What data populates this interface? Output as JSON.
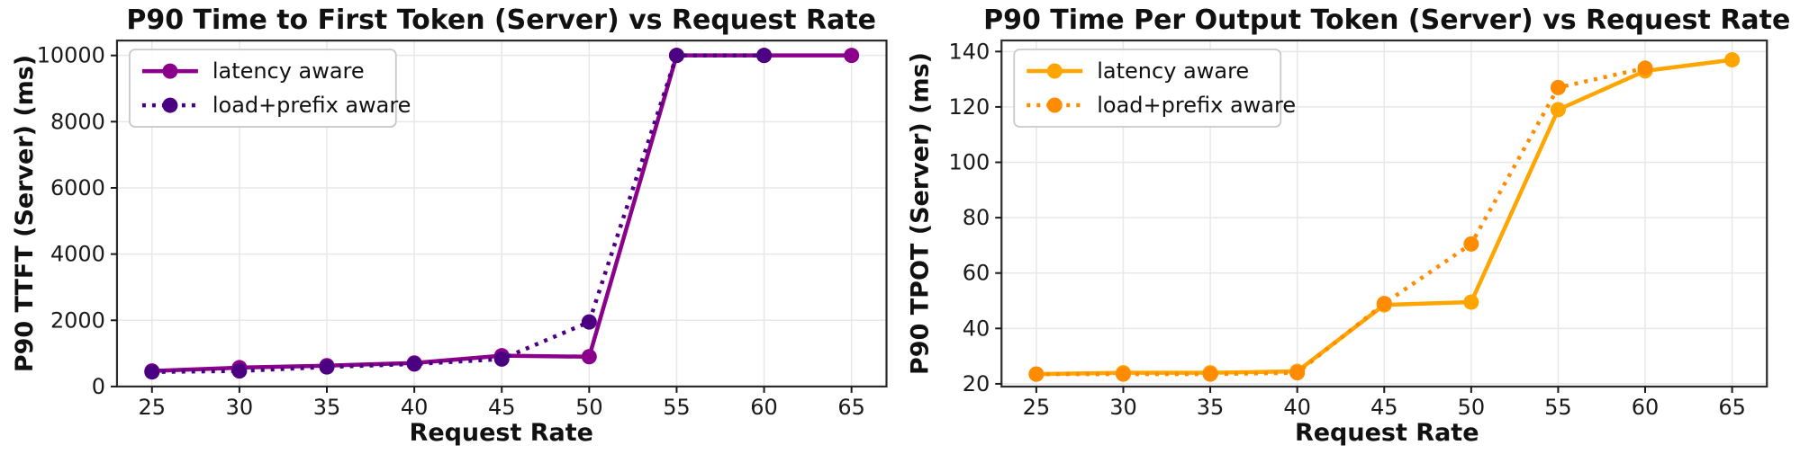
{
  "figure": {
    "background": "#ffffff",
    "grid_color": "#e8e8e8",
    "spine_color": "#2b2b2b",
    "tick_color": "#1a1a1a"
  },
  "chart_data": [
    {
      "type": "line",
      "title": "P90 Time to First Token (Server) vs Request Rate",
      "xlabel": "Request Rate",
      "ylabel": "P90 TTFT (Server) (ms)",
      "xticks": [
        25,
        30,
        35,
        40,
        45,
        50,
        55,
        60,
        65
      ],
      "yticks": [
        0,
        2000,
        4000,
        6000,
        8000,
        10000
      ],
      "xlim": [
        23,
        67
      ],
      "ylim": [
        0,
        10450
      ],
      "grid": true,
      "legend_position": "upper-left",
      "series": [
        {
          "name": "latency aware",
          "color": "#8B008B",
          "line_style": "solid",
          "marker": "circle",
          "x": [
            25,
            30,
            35,
            40,
            45,
            50,
            55,
            60,
            65
          ],
          "values": [
            470,
            570,
            630,
            710,
            930,
            900,
            10000,
            10000,
            10000
          ]
        },
        {
          "name": "load+prefix aware",
          "color": "#4B0082",
          "line_style": "dotted",
          "marker": "circle",
          "x": [
            25,
            30,
            35,
            40,
            45,
            50,
            55,
            60
          ],
          "values": [
            440,
            470,
            590,
            680,
            830,
            1950,
            10000,
            10000
          ]
        }
      ]
    },
    {
      "type": "line",
      "title": "P90 Time Per Output Token (Server) vs Request Rate",
      "xlabel": "Request Rate",
      "ylabel": "P90 TPOT (Server) (ms)",
      "xticks": [
        25,
        30,
        35,
        40,
        45,
        50,
        55,
        60,
        65
      ],
      "yticks": [
        20,
        40,
        60,
        80,
        100,
        120,
        140
      ],
      "xlim": [
        23,
        67
      ],
      "ylim": [
        19,
        144
      ],
      "grid": true,
      "legend_position": "upper-left",
      "series": [
        {
          "name": "latency aware",
          "color": "#FFA500",
          "line_style": "solid",
          "marker": "circle",
          "x": [
            25,
            30,
            35,
            40,
            45,
            50,
            55,
            60,
            65
          ],
          "values": [
            23.5,
            24,
            24,
            24.5,
            48.5,
            49.5,
            119,
            133,
            137
          ]
        },
        {
          "name": "load+prefix aware",
          "color": "#FF8C00",
          "line_style": "dotted",
          "marker": "circle",
          "x": [
            25,
            30,
            35,
            40,
            45,
            50,
            55,
            60
          ],
          "values": [
            23.5,
            23.5,
            23.5,
            24,
            49,
            70.5,
            127,
            134
          ]
        }
      ]
    }
  ]
}
